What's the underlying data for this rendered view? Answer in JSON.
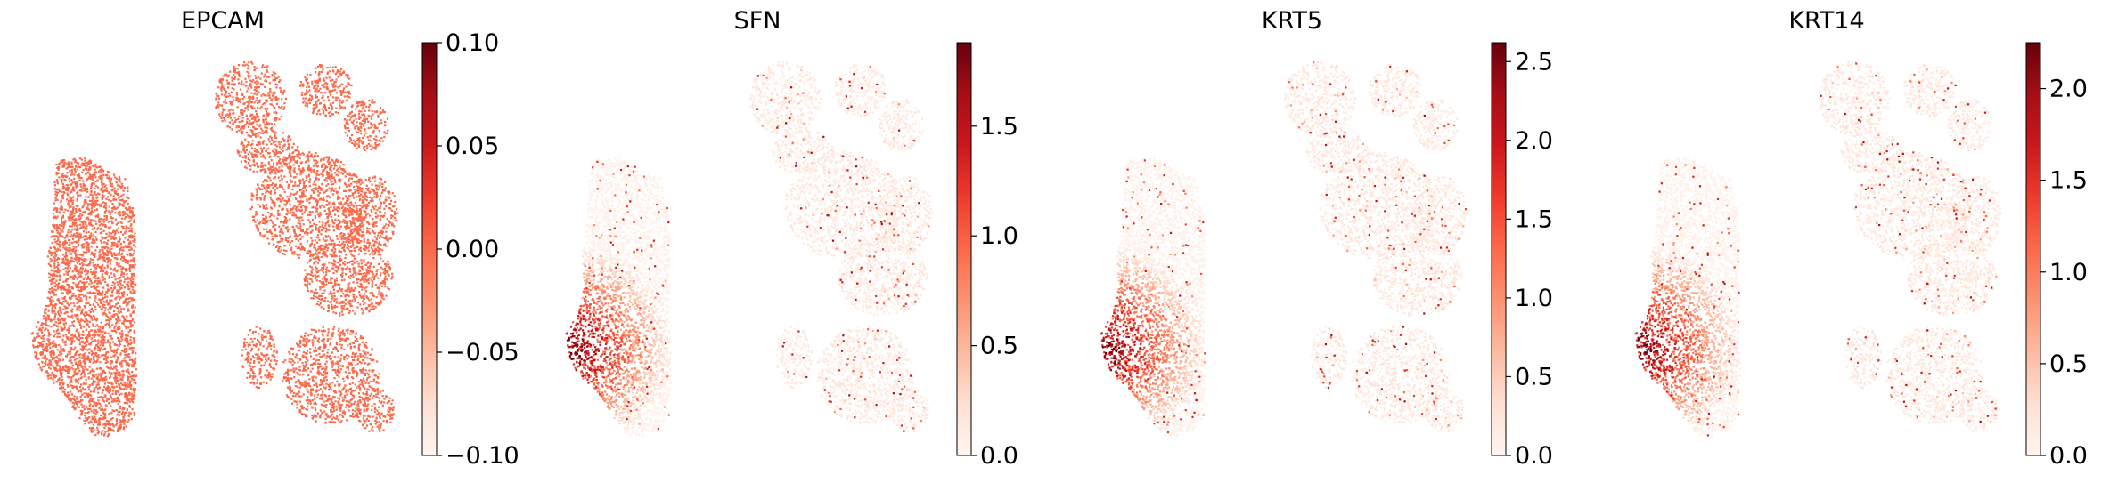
{
  "colors": {
    "cmap": [
      "#fff5f0",
      "#fee0d2",
      "#fcbba1",
      "#fc9272",
      "#fb6a4a",
      "#ef3b2c",
      "#cb181d",
      "#a50f15",
      "#67000d"
    ],
    "epcam_uniform": "#fb6a4a"
  },
  "chart_data": [
    {
      "type": "scatter",
      "title": "EPCAM",
      "xlabel": "",
      "ylabel": "",
      "colorbar": {
        "min": -0.1,
        "max": 0.1,
        "ticks": [
          "0.10",
          "0.05",
          "0.00",
          "−0.05",
          "−0.10"
        ],
        "tick_values": [
          0.1,
          0.05,
          0.0,
          -0.05,
          -0.1
        ]
      },
      "expression_pattern": "uniform"
    },
    {
      "type": "scatter",
      "title": "SFN",
      "xlabel": "",
      "ylabel": "",
      "colorbar": {
        "min": 0.0,
        "max": 1.88,
        "ticks": [
          "1.5",
          "1.0",
          "0.5",
          "0.0"
        ],
        "tick_values": [
          1.5,
          1.0,
          0.5,
          0.0
        ]
      },
      "expression_pattern": "left-lobe-concentrated"
    },
    {
      "type": "scatter",
      "title": "KRT5",
      "xlabel": "",
      "ylabel": "",
      "colorbar": {
        "min": 0.0,
        "max": 2.62,
        "ticks": [
          "2.5",
          "2.0",
          "1.5",
          "1.0",
          "0.5",
          "0.0"
        ],
        "tick_values": [
          2.5,
          2.0,
          1.5,
          1.0,
          0.5,
          0.0
        ]
      },
      "expression_pattern": "left-lobe-concentrated"
    },
    {
      "type": "scatter",
      "title": "KRT14",
      "xlabel": "",
      "ylabel": "",
      "colorbar": {
        "min": 0.0,
        "max": 2.25,
        "ticks": [
          "2.0",
          "1.5",
          "1.0",
          "0.5",
          "0.0"
        ],
        "tick_values": [
          2.0,
          1.5,
          1.0,
          0.5,
          0.0
        ]
      },
      "expression_pattern": "left-lobe-concentrated"
    }
  ]
}
